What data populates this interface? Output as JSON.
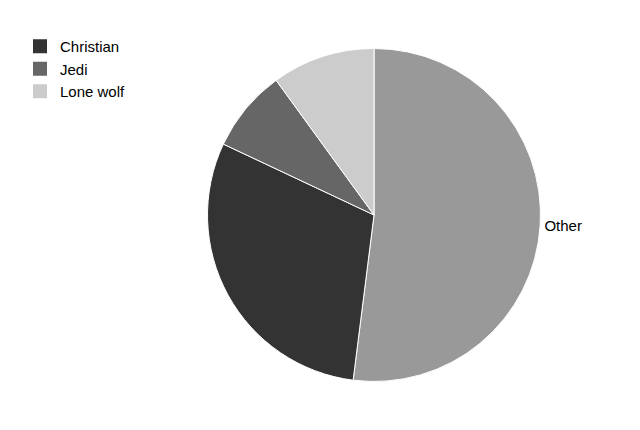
{
  "chart_data": {
    "type": "pie",
    "categories": [
      "Other",
      "Christian",
      "Jedi",
      "Lone wolf"
    ],
    "values": [
      52,
      30,
      8,
      10
    ],
    "colors": [
      "#999999",
      "#333333",
      "#666666",
      "#cccccc"
    ],
    "annotations": [
      "Other"
    ],
    "legend": "upper left"
  }
}
